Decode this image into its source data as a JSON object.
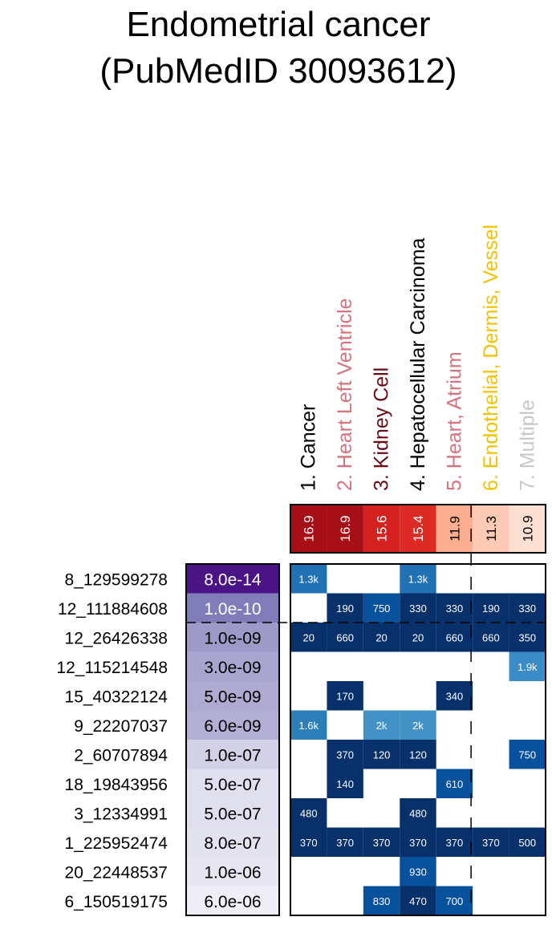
{
  "chart_data": {
    "type": "heatmap",
    "title_line1": "Endometrial cancer",
    "title_line2": "(PubMedID 30093612)",
    "columns": [
      {
        "label": "1. Cancer",
        "color": "#000000",
        "score": "16.9",
        "score_color": "#a50f15"
      },
      {
        "label": "2. Heart Left Ventricle",
        "color": "#d7717e",
        "score": "16.9",
        "score_color": "#a50f15"
      },
      {
        "label": "3. Kidney Cell",
        "color": "#6b0a12",
        "score": "15.6",
        "score_color": "#d52221"
      },
      {
        "label": "4. Hepatocellular Carcinoma",
        "color": "#000000",
        "score": "15.4",
        "score_color": "#dd2a25"
      },
      {
        "label": "5. Heart, Atrium",
        "color": "#d7717e",
        "score": "11.9",
        "score_color": "#fcae91"
      },
      {
        "label": "6. Endothelial, Dermis, Vessel",
        "color": "#f2c200",
        "score": "11.3",
        "score_color": "#fdcab5"
      },
      {
        "label": "7. Multiple",
        "color": "#c8c8c8",
        "score": "10.9",
        "score_color": "#fee0d2"
      }
    ],
    "rows": [
      {
        "snp": "8_129599278",
        "pvalue": "8.0e-14",
        "pv_color": "#4a1486",
        "pv_text": "#ffffff",
        "cells": [
          "1.3k",
          "",
          "",
          "1.3k",
          "",
          "",
          ""
        ]
      },
      {
        "snp": "12_111884608",
        "pvalue": "1.0e-10",
        "pv_color": "#807dba",
        "pv_text": "#ffffff",
        "cells": [
          "",
          "190",
          "750",
          "330",
          "330",
          "190",
          "330"
        ]
      },
      {
        "snp": "12_26426338",
        "pvalue": "1.0e-09",
        "pv_color": "#9e9ac8",
        "pv_text": "#000000",
        "cells": [
          "20",
          "660",
          "20",
          "20",
          "660",
          "660",
          "350"
        ]
      },
      {
        "snp": "12_115214548",
        "pvalue": "3.0e-09",
        "pv_color": "#a8a5ce",
        "pv_text": "#000000",
        "cells": [
          "",
          "",
          "",
          "",
          "",
          "",
          "1.9k"
        ]
      },
      {
        "snp": "15_40322124",
        "pvalue": "5.0e-09",
        "pv_color": "#aeaad1",
        "pv_text": "#000000",
        "cells": [
          "",
          "170",
          "",
          "",
          "340",
          "",
          ""
        ]
      },
      {
        "snp": "9_22207037",
        "pvalue": "6.0e-09",
        "pv_color": "#b3afd4",
        "pv_text": "#000000",
        "cells": [
          "1.6k",
          "",
          "2k",
          "2k",
          "",
          "",
          ""
        ]
      },
      {
        "snp": "2_60707894",
        "pvalue": "1.0e-07",
        "pv_color": "#d2d1e6",
        "pv_text": "#000000",
        "cells": [
          "",
          "370",
          "120",
          "120",
          "",
          "",
          "750"
        ]
      },
      {
        "snp": "18_19843956",
        "pvalue": "5.0e-07",
        "pv_color": "#e0dfee",
        "pv_text": "#000000",
        "cells": [
          "",
          "140",
          "",
          "",
          "610",
          "",
          ""
        ]
      },
      {
        "snp": "3_12334991",
        "pvalue": "5.0e-07",
        "pv_color": "#e0dfee",
        "pv_text": "#000000",
        "cells": [
          "480",
          "",
          "",
          "480",
          "",
          "",
          ""
        ]
      },
      {
        "snp": "1_225952474",
        "pvalue": "8.0e-07",
        "pv_color": "#e3e2ef",
        "pv_text": "#000000",
        "cells": [
          "370",
          "370",
          "370",
          "370",
          "370",
          "370",
          "500"
        ]
      },
      {
        "snp": "20_22448537",
        "pvalue": "1.0e-06",
        "pv_color": "#e6e5f1",
        "pv_text": "#000000",
        "cells": [
          "",
          "",
          "",
          "930",
          "",
          "",
          ""
        ]
      },
      {
        "snp": "6_150519175",
        "pvalue": "6.0e-06",
        "pv_color": "#efeef6",
        "pv_text": "#000000",
        "cells": [
          "",
          "",
          "830",
          "470",
          "700",
          "",
          ""
        ]
      }
    ],
    "cell_colors": {
      "20": "#08306b",
      "120": "#08306b",
      "140": "#08306b",
      "170": "#08306b",
      "190": "#08306b",
      "330": "#08306b",
      "340": "#08306b",
      "350": "#08306b",
      "370": "#08306b",
      "470": "#08306b",
      "480": "#08306b",
      "500": "#08306b",
      "610": "#08519c",
      "660": "#08306b",
      "700": "#08519c",
      "750": "#08519c",
      "830": "#08519c",
      "930": "#08519c",
      "1.3k": "#2171b5",
      "1.6k": "#2c7fb8",
      "1.9k": "#3a8cc6",
      "2k": "#4292c6"
    }
  }
}
